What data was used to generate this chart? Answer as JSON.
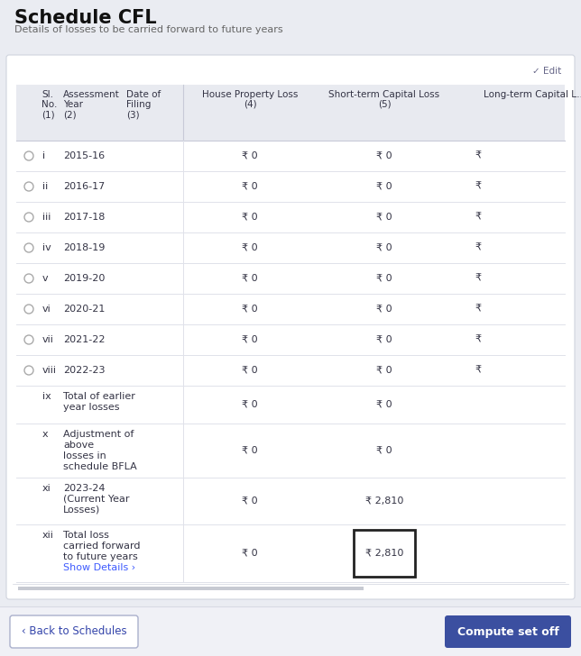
{
  "title": "Schedule CFL",
  "subtitle": "Details of losses to be carried forward to future years",
  "bg_color": "#eaecf2",
  "card_color": "#ffffff",
  "header_bg": "#e8eaf0",
  "edit_label": "✓ Edit",
  "rows": [
    {
      "radio": true,
      "sl": "i",
      "year": "2015-16",
      "hpl": "₹ 0",
      "stcl": "₹ 0",
      "ltcl": "₹"
    },
    {
      "radio": true,
      "sl": "ii",
      "year": "2016-17",
      "hpl": "₹ 0",
      "stcl": "₹ 0",
      "ltcl": "₹"
    },
    {
      "radio": true,
      "sl": "iii",
      "year": "2017-18",
      "hpl": "₹ 0",
      "stcl": "₹ 0",
      "ltcl": "₹"
    },
    {
      "radio": true,
      "sl": "iv",
      "year": "2018-19",
      "hpl": "₹ 0",
      "stcl": "₹ 0",
      "ltcl": "₹"
    },
    {
      "radio": true,
      "sl": "v",
      "year": "2019-20",
      "hpl": "₹ 0",
      "stcl": "₹ 0",
      "ltcl": "₹"
    },
    {
      "radio": true,
      "sl": "vi",
      "year": "2020-21",
      "hpl": "₹ 0",
      "stcl": "₹ 0",
      "ltcl": "₹"
    },
    {
      "radio": true,
      "sl": "vii",
      "year": "2021-22",
      "hpl": "₹ 0",
      "stcl": "₹ 0",
      "ltcl": "₹"
    },
    {
      "radio": true,
      "sl": "viii",
      "year": "2022-23",
      "hpl": "₹ 0",
      "stcl": "₹ 0",
      "ltcl": "₹"
    }
  ],
  "summary_rows": [
    {
      "sl": "ix",
      "label": [
        "Total of earlier",
        "year losses"
      ],
      "hpl": "₹ 0",
      "stcl": "₹ 0",
      "boxed": false,
      "show_details": false
    },
    {
      "sl": "x",
      "label": [
        "Adjustment of",
        "above",
        "losses in",
        "schedule BFLA"
      ],
      "hpl": "₹ 0",
      "stcl": "₹ 0",
      "boxed": false,
      "show_details": false
    },
    {
      "sl": "xi",
      "label": [
        "2023-24",
        "(Current Year",
        "Losses)"
      ],
      "hpl": "₹ 0",
      "stcl": "₹ 2,810",
      "boxed": false,
      "show_details": false
    },
    {
      "sl": "xii",
      "label": [
        "Total loss",
        "carried forward",
        "to future years"
      ],
      "hpl": "₹ 0",
      "stcl": "₹ 2,810",
      "boxed": true,
      "show_details": true
    }
  ],
  "footer_left_text": "‹ Back to Schedules",
  "footer_right_text": "Compute set off",
  "footer_right_bg": "#3b4fa0",
  "show_details_text": "Show Details ›",
  "show_details_color": "#3d5afe",
  "scrollbar_color": "#b0b4c0"
}
